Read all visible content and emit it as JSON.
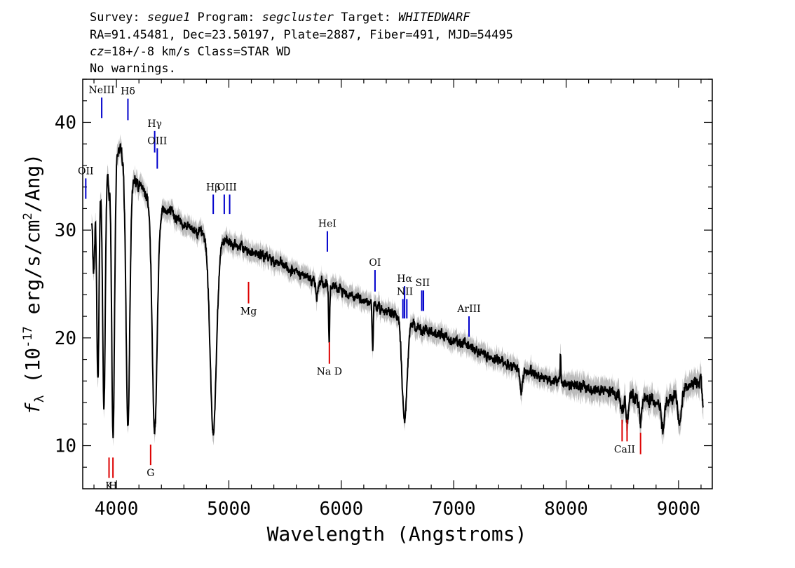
{
  "header": {
    "line1": {
      "p1": "Survey: ",
      "survey": "segue1",
      "p2": " Program: ",
      "program": "segcluster",
      "p3": " Target: ",
      "target": "WHITEDWARF"
    },
    "line2": "RA=91.45481, Dec=23.50197, Plate=2887, Fiber=491, MJD=54495",
    "line3": {
      "cz": "cz",
      "rest": "=18+/-8 km/s Class=STAR WD"
    },
    "line4": "No warnings."
  },
  "chart_data": {
    "type": "line",
    "title": "",
    "xlabel": "Wavelength (Angstroms)",
    "ylabel": {
      "f": "f",
      "sub": "λ",
      "pre": "(10",
      "exp": "-17",
      "mid": " erg/s/cm",
      "exp2": "2",
      "post": "/Ang)"
    },
    "xlim": [
      3700,
      9300
    ],
    "ylim": [
      6,
      44
    ],
    "xticks": [
      4000,
      5000,
      6000,
      7000,
      8000,
      9000
    ],
    "yticks": [
      10,
      20,
      30,
      40
    ],
    "grid": false,
    "colors": {
      "flux": "#000000",
      "error_band": "#bbbbbb",
      "emission": "#0000cc",
      "absorption": "#dd0000"
    },
    "continuum": {
      "x": [
        3780,
        3830,
        3900,
        4000,
        4050,
        4150,
        4250,
        4350,
        4420,
        4500,
        4600,
        4800,
        5000,
        5200,
        5400,
        5600,
        5800,
        6000,
        6200,
        6400,
        6600,
        6700,
        6900,
        7100,
        7300,
        7500,
        7700,
        7900,
        8100,
        8300,
        8500,
        8700,
        8900,
        9100,
        9200,
        9220
      ],
      "y": [
        31,
        34,
        36,
        37.5,
        37,
        35,
        33.5,
        32.3,
        32,
        31.5,
        30.5,
        29.5,
        28.8,
        28,
        27.2,
        26,
        25.2,
        24.4,
        23.5,
        22.5,
        21.6,
        20.8,
        20.2,
        19.4,
        18.4,
        17.5,
        16.7,
        16,
        15.5,
        15.1,
        14.7,
        14.3,
        14,
        15.5,
        16.2,
        13.5
      ]
    },
    "absorption_features": [
      {
        "center": 3798,
        "depth": 6,
        "width": 8
      },
      {
        "center": 3835,
        "depth": 18,
        "width": 10
      },
      {
        "center": 3889,
        "depth": 22,
        "width": 12
      },
      {
        "center": 3933,
        "depth": 3,
        "width": 6
      },
      {
        "center": 3970,
        "depth": 26,
        "width": 13
      },
      {
        "center": 4102,
        "depth": 24,
        "width": 17
      },
      {
        "center": 4340,
        "depth": 21,
        "width": 22
      },
      {
        "center": 4861,
        "depth": 18,
        "width": 28
      },
      {
        "center": 5780,
        "depth": 1.5,
        "width": 8
      },
      {
        "center": 5892,
        "depth": 5,
        "width": 5
      },
      {
        "center": 6280,
        "depth": 4,
        "width": 5
      },
      {
        "center": 6563,
        "depth": 9.5,
        "width": 22
      },
      {
        "center": 7600,
        "depth": 2,
        "width": 12
      },
      {
        "center": 8498,
        "depth": 1.5,
        "width": 12
      },
      {
        "center": 8542,
        "depth": 2,
        "width": 12
      },
      {
        "center": 8662,
        "depth": 2,
        "width": 12
      },
      {
        "center": 8860,
        "depth": 2.5,
        "width": 14
      },
      {
        "center": 9010,
        "depth": 3,
        "width": 14
      }
    ],
    "spikes": [
      {
        "center": 7950,
        "height": 3
      }
    ],
    "emission_lines": [
      {
        "label": "NeIII",
        "wave": 3869,
        "y_top": 42.3,
        "y_bot": 40.4
      },
      {
        "label": "Hδ",
        "wave": 4102,
        "y_top": 42.2,
        "y_bot": 40.2
      },
      {
        "label": "Hγ",
        "wave": 4340,
        "y_top": 39.2,
        "y_bot": 37.2
      },
      {
        "label": "OIII",
        "wave": 4363,
        "y_top": 37.6,
        "y_bot": 35.7
      },
      {
        "label": "OII",
        "wave": 3727,
        "y_top": 34.8,
        "y_bot": 32.9
      },
      {
        "label": "Hβ",
        "wave": 4861,
        "y_top": 33.3,
        "y_bot": 31.5
      },
      {
        "label": "OIII",
        "wave": 4959,
        "y_top": 33.3,
        "y_bot": 31.5
      },
      {
        "label": "OIII",
        "wave": 5007,
        "y_top": 33.3,
        "y_bot": 31.5
      },
      {
        "label": "HeI",
        "wave": 5876,
        "y_top": 29.9,
        "y_bot": 28
      },
      {
        "label": "OI",
        "wave": 6300,
        "y_top": 26.3,
        "y_bot": 24.3
      },
      {
        "label": "NII",
        "wave": 6548,
        "y_top": 23.6,
        "y_bot": 21.8
      },
      {
        "label": "Hα",
        "wave": 6563,
        "y_top": 24.8,
        "y_bot": 21.8
      },
      {
        "label": "NII",
        "wave": 6583,
        "y_top": 23.6,
        "y_bot": 21.8
      },
      {
        "label": "SII",
        "wave": 6716,
        "y_top": 24.4,
        "y_bot": 22.5
      },
      {
        "label": "SII",
        "wave": 6731,
        "y_top": 24.4,
        "y_bot": 22.5
      },
      {
        "label": "ArIII",
        "wave": 7136,
        "y_top": 22,
        "y_bot": 20.1
      }
    ],
    "absorption_lines": [
      {
        "label": "K",
        "wave": 3934,
        "y_top": 8.9,
        "y_bot": 7
      },
      {
        "label": "H",
        "wave": 3969,
        "y_top": 8.9,
        "y_bot": 7
      },
      {
        "label": "G",
        "wave": 4304,
        "y_top": 10.1,
        "y_bot": 8.2
      },
      {
        "label": "Mg",
        "wave": 5175,
        "y_top": 25.2,
        "y_bot": 23.2
      },
      {
        "label": "Na D",
        "wave": 5894,
        "y_top": 19.6,
        "y_bot": 17.6
      },
      {
        "label": "CaII",
        "wave": 8498,
        "y_top": 12.4,
        "y_bot": 10.4
      },
      {
        "label": "CaII",
        "wave": 8542,
        "y_top": 12.4,
        "y_bot": 10.4
      },
      {
        "label": "CaII",
        "wave": 8662,
        "y_top": 11.2,
        "y_bot": 9.2
      }
    ]
  }
}
